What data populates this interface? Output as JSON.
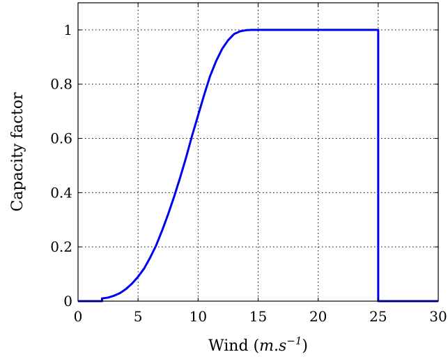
{
  "chart_data": {
    "type": "line",
    "xlabel_text": "Wind (",
    "xlabel_math": "m.s",
    "xlabel_sup": "−1",
    "xlabel_close": ")",
    "ylabel": "Capacity factor",
    "xlim": [
      0,
      30
    ],
    "ylim": [
      0,
      1.1
    ],
    "xticks": [
      0,
      5,
      10,
      15,
      20,
      25,
      30
    ],
    "yticks": [
      0,
      0.2,
      0.4,
      0.6,
      0.8,
      1
    ],
    "xtick_labels": [
      "0",
      "5",
      "10",
      "15",
      "20",
      "25",
      "30"
    ],
    "ytick_labels": [
      "0",
      "0.2",
      "0.4",
      "0.6",
      "0.8",
      "1"
    ],
    "grid": true,
    "line_color": "#0000ee",
    "series": [
      {
        "x": [
          0,
          2,
          2,
          2.5,
          3,
          3.5,
          4,
          4.5,
          5,
          5.5,
          6,
          6.5,
          7,
          7.5,
          8,
          8.5,
          9,
          9.5,
          10,
          10.5,
          11,
          11.5,
          12,
          12.5,
          13,
          13.5,
          14,
          14.5,
          15,
          16,
          18,
          20,
          22,
          24,
          25,
          25,
          26,
          28,
          30
        ],
        "y": [
          0,
          0,
          0.01,
          0.013,
          0.02,
          0.03,
          0.045,
          0.065,
          0.09,
          0.12,
          0.16,
          0.205,
          0.26,
          0.32,
          0.385,
          0.455,
          0.53,
          0.61,
          0.685,
          0.76,
          0.83,
          0.885,
          0.93,
          0.962,
          0.985,
          0.995,
          0.999,
          1.0,
          1.0,
          1.0,
          1.0,
          1.0,
          1.0,
          1.0,
          1.0,
          0,
          0,
          0,
          0
        ]
      }
    ]
  }
}
